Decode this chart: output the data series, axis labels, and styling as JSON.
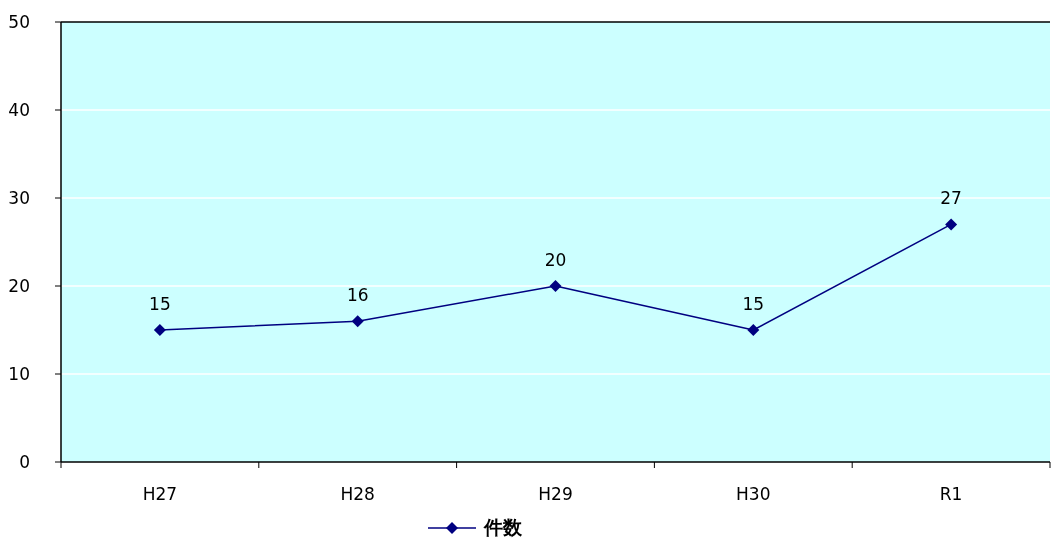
{
  "chart_data": {
    "type": "line",
    "categories": [
      "H27",
      "H28",
      "H29",
      "H30",
      "R1"
    ],
    "series": [
      {
        "name": "件数",
        "color": "#000080",
        "values": [
          15,
          16,
          20,
          15,
          27
        ]
      }
    ],
    "ylim": [
      0,
      50
    ],
    "yticks": [
      0,
      10,
      20,
      30,
      40,
      50
    ],
    "grid": "y",
    "legend": "bottom",
    "marker": "diamond",
    "line_style": "solid",
    "data_labels": true
  }
}
